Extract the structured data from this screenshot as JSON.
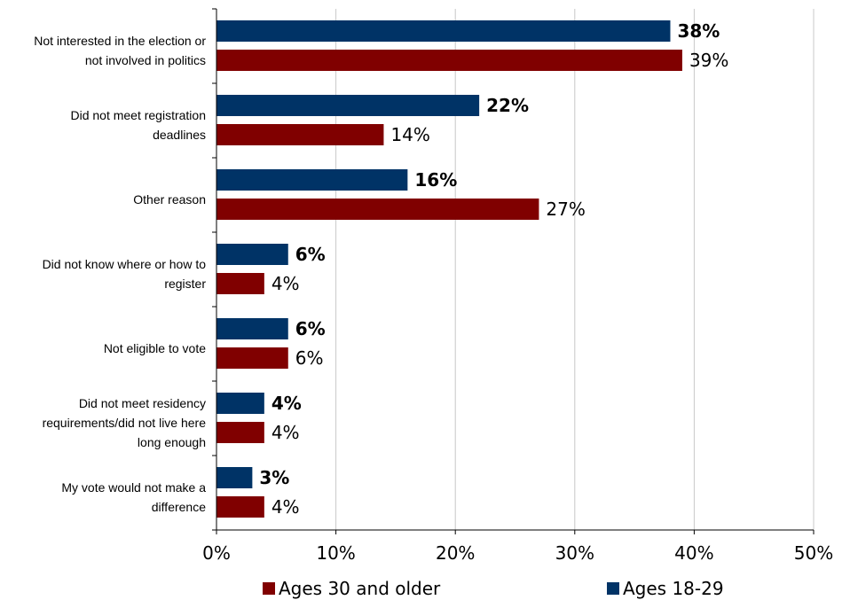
{
  "chart_data": {
    "type": "bar",
    "orientation": "horizontal",
    "categories": [
      [
        "Not interested in the election or",
        "not involved in politics"
      ],
      [
        "Did not meet registration",
        "deadlines"
      ],
      [
        "Other reason"
      ],
      [
        "Did not know where or how to",
        "register"
      ],
      [
        "Not eligible to vote"
      ],
      [
        "Did not meet residency",
        "requirements/did not live here",
        "long enough"
      ],
      [
        "My vote would not make a",
        "difference"
      ]
    ],
    "series": [
      {
        "name": "Ages 18-29",
        "color": "#003366",
        "values": [
          38,
          22,
          16,
          6,
          6,
          4,
          3
        ],
        "labels": [
          "38%",
          "22%",
          "16%",
          "6%",
          "6%",
          "4%",
          "3%"
        ]
      },
      {
        "name": "Ages 30 and older",
        "color": "#800000",
        "values": [
          39,
          14,
          27,
          4,
          6,
          4,
          4
        ],
        "labels": [
          "39%",
          "14%",
          "27%",
          "4%",
          "6%",
          "4%",
          "4%"
        ]
      }
    ],
    "xlim": [
      0,
      50
    ],
    "xticks": [
      0,
      10,
      20,
      30,
      40,
      50
    ],
    "xtick_labels": [
      "0%",
      "10%",
      "20%",
      "30%",
      "40%",
      "50%"
    ],
    "grid": "vertical",
    "legend": {
      "position": "bottom",
      "order": [
        "Ages 30 and older",
        "Ages 18-29"
      ]
    }
  }
}
